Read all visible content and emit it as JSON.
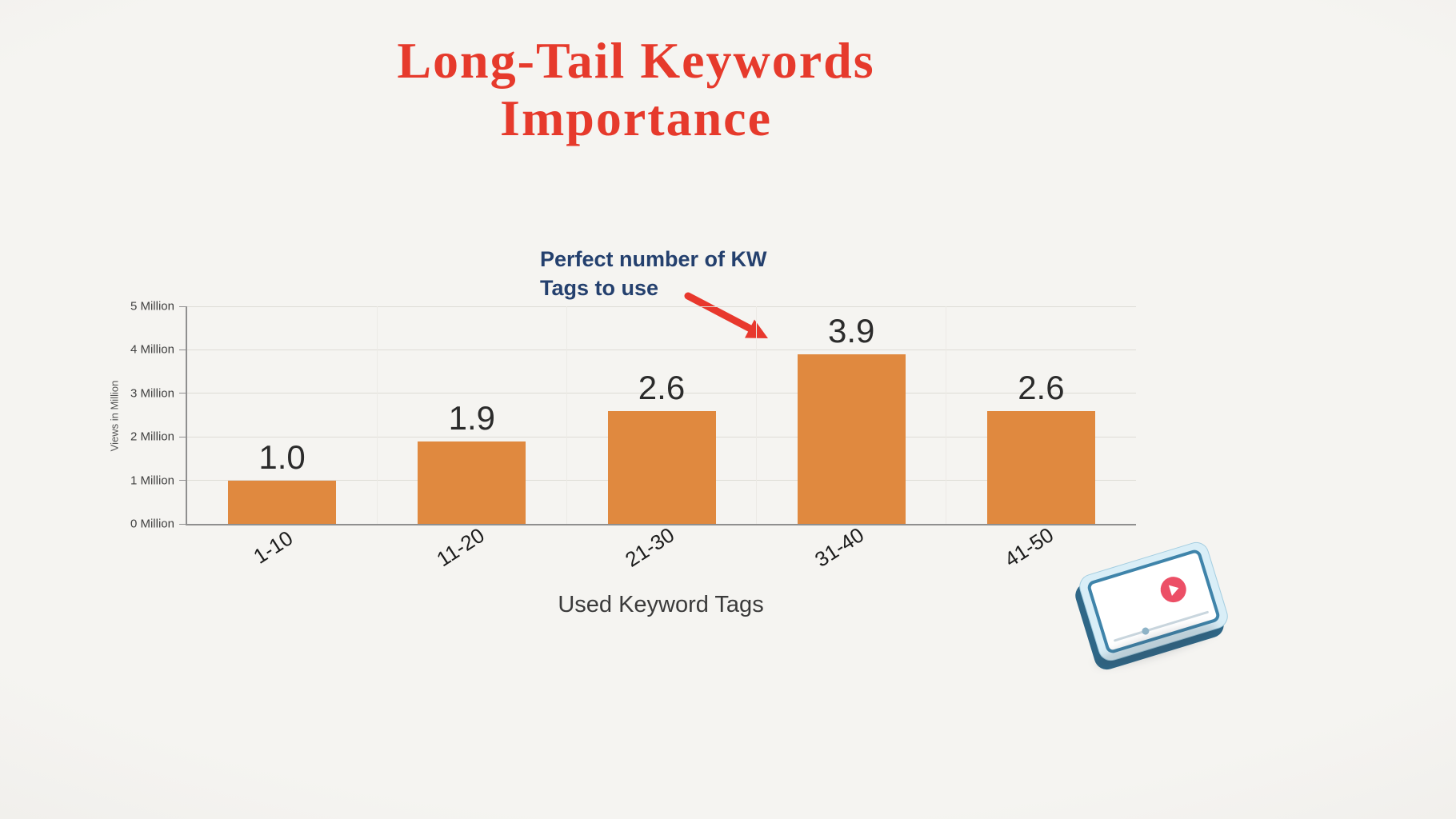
{
  "header": {
    "title_line1": "Long-Tail Keywords",
    "title_line2": "Importance"
  },
  "annotation": {
    "line1": "Perfect number of KW",
    "line2": "Tags to use"
  },
  "chart_data": {
    "type": "bar",
    "title": "Long-Tail Keywords Importance",
    "categories": [
      "1-10",
      "11-20",
      "21-30",
      "31-40",
      "41-50"
    ],
    "values": [
      1.0,
      1.9,
      2.6,
      3.9,
      2.6
    ],
    "value_labels": [
      "1.0",
      "1.9",
      "2.6",
      "3.9",
      "2.6"
    ],
    "xlabel": "Used Keyword Tags",
    "ylabel": "Views in Million",
    "y_ticks": [
      "0 Million",
      "1 Million",
      "2 Million",
      "3 Million",
      "4 Million",
      "5 Million"
    ],
    "ylim": [
      0,
      5
    ],
    "grid": true,
    "legend": false,
    "bar_color": "#E0893F",
    "annotation": {
      "text": "Perfect number of KW Tags to use",
      "target_category": "31-40"
    }
  },
  "colors": {
    "background": "#F3F2EF",
    "title_red": "#E63A2C",
    "annotation_navy": "#24406E",
    "arrow_red": "#E8382D",
    "bar_orange": "#E0893F",
    "axis_text": "#3A3A3A"
  },
  "icons": {
    "play_icon": "play-triangle",
    "illustration": "tablet-video-player"
  }
}
